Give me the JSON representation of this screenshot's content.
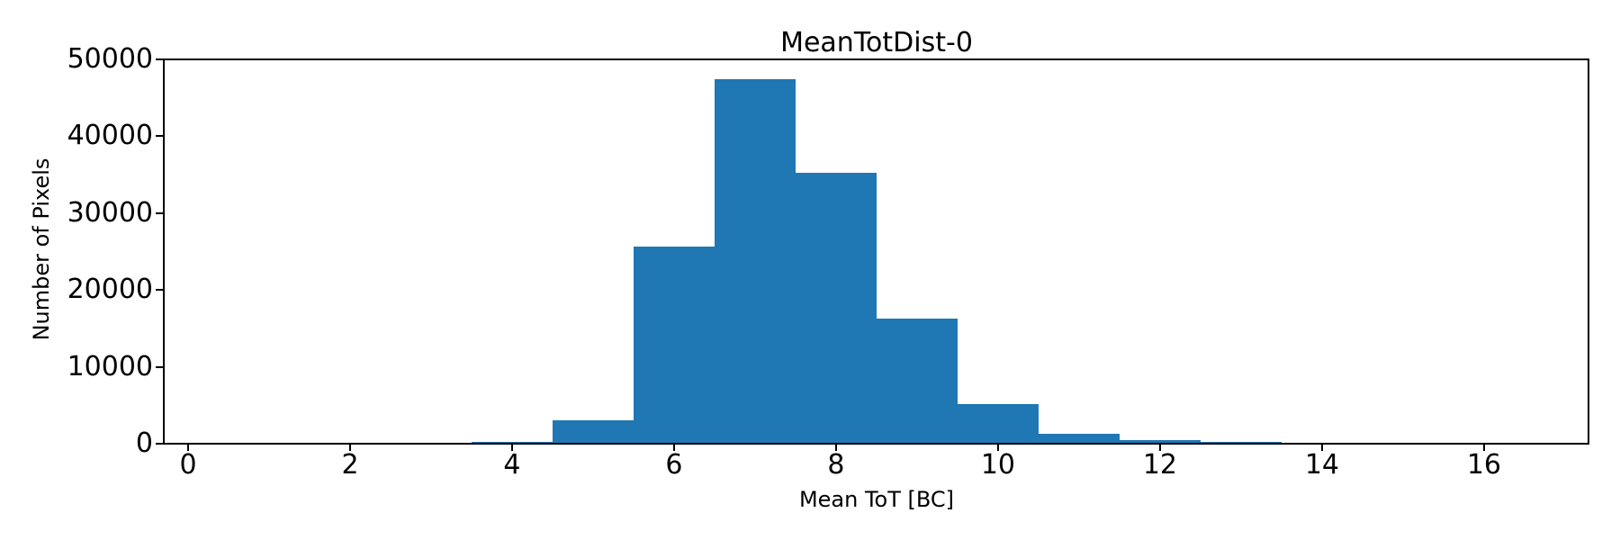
{
  "figure": {
    "background": "#ffffff",
    "text_color": "#000000"
  },
  "chart_data": {
    "type": "bar",
    "subtype": "histogram",
    "title": "MeanTotDist-0",
    "xlabel": "Mean ToT [BC]",
    "ylabel": "Number of Pixels",
    "bar_color": "#1f77b4",
    "grid": false,
    "legend": null,
    "bin_edges": [
      3.5,
      4.5,
      5.5,
      6.5,
      7.5,
      8.5,
      9.5,
      10.5,
      11.5,
      12.5,
      13.5,
      14.5
    ],
    "categories": [
      4,
      5,
      6,
      7,
      8,
      9,
      10,
      11,
      12,
      13,
      14
    ],
    "values": [
      200,
      3100,
      25700,
      47400,
      35200,
      16300,
      5100,
      1300,
      500,
      200,
      150
    ],
    "xlim": [
      -0.3,
      17.29
    ],
    "ylim": [
      0,
      50000
    ],
    "xticks": {
      "values": [
        0,
        2,
        4,
        6,
        8,
        10,
        12,
        14,
        16
      ],
      "labels": [
        "0",
        "2",
        "4",
        "6",
        "8",
        "10",
        "12",
        "14",
        "16"
      ]
    },
    "yticks": {
      "values": [
        0,
        10000,
        20000,
        30000,
        40000,
        50000
      ],
      "labels": [
        "0",
        "10000",
        "20000",
        "30000",
        "40000",
        "50000"
      ]
    }
  }
}
